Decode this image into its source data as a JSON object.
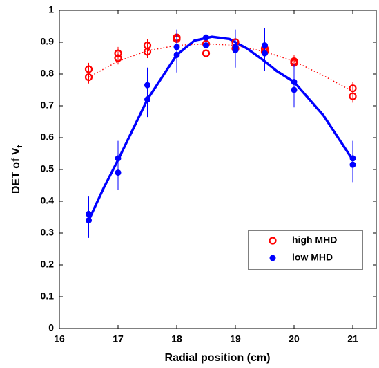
{
  "chart_data": {
    "type": "scatter",
    "xlabel": "Radial position (cm)",
    "ylabel": "DET of  V",
    "ylabel_sub": "f",
    "xlim": [
      16,
      21.4
    ],
    "ylim": [
      0,
      1
    ],
    "xticks": [
      16,
      17,
      18,
      19,
      20,
      21
    ],
    "yticks": [
      0,
      0.1,
      0.2,
      0.3,
      0.4,
      0.5,
      0.6,
      0.7,
      0.8,
      0.9,
      1
    ],
    "legend": "lower right",
    "series": [
      {
        "name": "high MHD",
        "color": "#ff0000",
        "marker": "open",
        "x": [
          16.5,
          16.5,
          17,
          17,
          17.5,
          17.5,
          18,
          18,
          18.5,
          18.5,
          19,
          19,
          19.5,
          19.5,
          20,
          20,
          21,
          21
        ],
        "values": [
          0.815,
          0.79,
          0.865,
          0.85,
          0.89,
          0.87,
          0.915,
          0.91,
          0.895,
          0.865,
          0.9,
          0.88,
          0.88,
          0.87,
          0.84,
          0.835,
          0.755,
          0.73
        ],
        "errors": [
          0.02,
          0.02,
          0.02,
          0.02,
          0.02,
          0.02,
          0.02,
          0.02,
          0.02,
          0.02,
          0.02,
          0.02,
          0.02,
          0.02,
          0.02,
          0.02,
          0.02,
          0.02
        ]
      },
      {
        "name": "low MHD",
        "color": "#0000ff",
        "marker": "filled",
        "x": [
          16.5,
          16.5,
          17,
          17,
          17.5,
          17.5,
          18,
          18,
          18.5,
          18.5,
          19,
          19,
          19.5,
          19.5,
          20,
          20,
          21,
          21
        ],
        "values": [
          0.36,
          0.34,
          0.535,
          0.49,
          0.765,
          0.72,
          0.885,
          0.86,
          0.915,
          0.89,
          0.885,
          0.875,
          0.89,
          0.865,
          0.775,
          0.75,
          0.535,
          0.515
        ],
        "errors": [
          0.055,
          0.055,
          0.055,
          0.055,
          0.055,
          0.055,
          0.055,
          0.055,
          0.055,
          0.055,
          0.055,
          0.055,
          0.055,
          0.055,
          0.055,
          0.055,
          0.055,
          0.055
        ]
      }
    ],
    "fits": [
      {
        "color": "#ff0000",
        "style": "dotted",
        "x": [
          16.5,
          17,
          17.5,
          18,
          18.5,
          19,
          19.5,
          20,
          20.5,
          21
        ],
        "values": [
          0.79,
          0.84,
          0.873,
          0.89,
          0.895,
          0.89,
          0.87,
          0.84,
          0.795,
          0.745
        ]
      },
      {
        "color": "#0000ff",
        "style": "solid",
        "x": [
          16.5,
          16.75,
          17,
          17.5,
          18,
          18.3,
          18.6,
          18.9,
          19.2,
          19.5,
          19.7,
          20,
          20.5,
          21
        ],
        "values": [
          0.34,
          0.44,
          0.53,
          0.72,
          0.86,
          0.905,
          0.917,
          0.91,
          0.88,
          0.84,
          0.81,
          0.775,
          0.67,
          0.53
        ]
      }
    ]
  }
}
